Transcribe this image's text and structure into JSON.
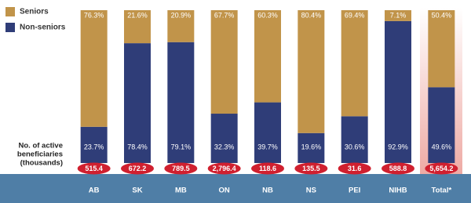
{
  "chart_data": {
    "type": "bar",
    "stacked": true,
    "categories": [
      "AB",
      "SK",
      "MB",
      "ON",
      "NB",
      "NS",
      "PEI",
      "NIHB",
      "Total*"
    ],
    "series": [
      {
        "name": "Seniors",
        "color": "#c1944a",
        "values": [
          76.3,
          21.6,
          20.9,
          67.7,
          60.3,
          80.4,
          69.4,
          7.1,
          50.4
        ],
        "value_labels": [
          "76.3%",
          "21.6%",
          "20.9%",
          "67.7%",
          "60.3%",
          "80.4%",
          "69.4%",
          "7.1%",
          "50.4%"
        ]
      },
      {
        "name": "Non-seniors",
        "color": "#2f3d78",
        "values": [
          23.7,
          78.4,
          79.1,
          32.3,
          39.7,
          19.6,
          30.6,
          92.9,
          49.6
        ],
        "value_labels": [
          "23.7%",
          "78.4%",
          "79.1%",
          "32.3%",
          "39.7%",
          "19.6%",
          "30.6%",
          "92.9%",
          "49.6%"
        ]
      }
    ],
    "ylim": [
      0,
      100
    ],
    "beneficiaries": {
      "label": [
        "No. of active",
        "beneficiaries",
        "(thousands)"
      ],
      "color": "#d0202f",
      "values": [
        515.4,
        672.2,
        789.5,
        2796.4,
        118.6,
        135.5,
        31.6,
        588.8,
        5654.2
      ],
      "value_labels": [
        "515.4",
        "672.2",
        "789.5",
        "2,796.4",
        "118.6",
        "135.5",
        "31.6",
        "588.8",
        "5,654.2"
      ]
    }
  }
}
